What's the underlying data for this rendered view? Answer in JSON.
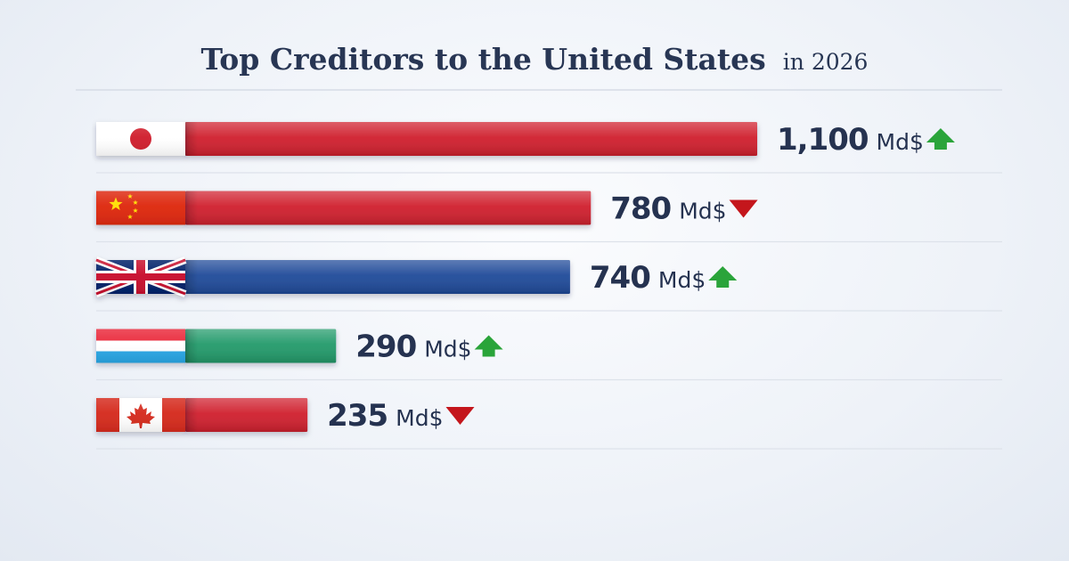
{
  "chart_data": {
    "type": "bar",
    "orientation": "horizontal",
    "title": "Top Creditors to the United States",
    "subtitle": "in 2026",
    "unit": "Md$",
    "categories": [
      "Japan",
      "China",
      "United Kingdom",
      "Luxembourg",
      "Canada"
    ],
    "values": [
      1100,
      780,
      740,
      290,
      235
    ],
    "value_labels": [
      "1,100",
      "780",
      "740",
      "290",
      "235"
    ],
    "trends": [
      "up",
      "down",
      "up",
      "up",
      "down"
    ],
    "bar_colors": [
      "#d0202e",
      "#d0202e",
      "#1f4a99",
      "#229a6a",
      "#d0202e"
    ],
    "trend_colors": {
      "up": "#2aa43a",
      "down": "#c4161c"
    },
    "xlim": [
      0,
      1100
    ],
    "grid": false,
    "legend": "none"
  }
}
